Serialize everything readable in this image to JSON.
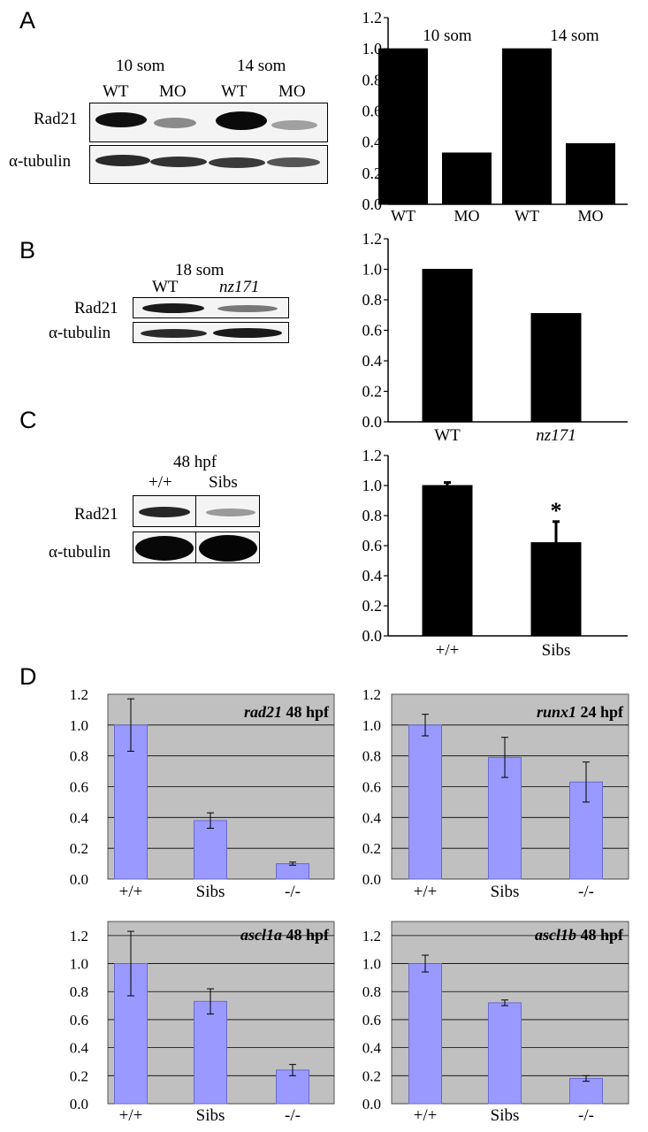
{
  "panel_letters": {
    "a": "A",
    "b": "B",
    "c": "C",
    "d": "D"
  },
  "blot_a": {
    "group_left": "10 som",
    "group_right": "14 som",
    "lanes": [
      "WT",
      "MO",
      "WT",
      "MO"
    ],
    "row1": "Rad21",
    "row2": "α-tubulin"
  },
  "blot_b": {
    "group": "18 som",
    "lanes": [
      "WT",
      "nz171"
    ],
    "row1": "Rad21",
    "row2": "α-tubulin"
  },
  "blot_c": {
    "group": "48 hpf",
    "lanes": [
      "+/+",
      "Sibs"
    ],
    "row1": "Rad21",
    "row2": "α-tubulin"
  },
  "colors": {
    "black_bar": "#000000",
    "blue_bar": "#9999ff",
    "plot_bg": "#c0c0c0"
  },
  "chart_data": [
    {
      "id": "A",
      "type": "bar",
      "categories": [
        "WT",
        "MO",
        "WT",
        "MO"
      ],
      "values": [
        1.0,
        0.33,
        1.0,
        0.39
      ],
      "group_labels": [
        "10 som",
        "14 som"
      ],
      "yticks": [
        "0.0",
        "0.2",
        "0.4",
        "0.6",
        "0.8",
        "1.0",
        "1.2"
      ],
      "ylim": [
        0,
        1.2
      ],
      "grid": false
    },
    {
      "id": "B",
      "type": "bar",
      "categories": [
        "WT",
        "nz171"
      ],
      "values": [
        1.0,
        0.71
      ],
      "yticks": [
        "0.0",
        "0.2",
        "0.4",
        "0.6",
        "0.8",
        "1.0",
        "1.2"
      ],
      "ylim": [
        0,
        1.2
      ],
      "grid": false
    },
    {
      "id": "C",
      "type": "bar",
      "categories": [
        "+/+",
        "Sibs"
      ],
      "values": [
        1.0,
        0.62
      ],
      "errors": [
        0.02,
        0.14
      ],
      "annotation": "*",
      "yticks": [
        "0.0",
        "0.2",
        "0.4",
        "0.6",
        "0.8",
        "1.0",
        "1.2"
      ],
      "ylim": [
        0,
        1.2
      ],
      "grid": false
    },
    {
      "id": "D1",
      "type": "bar",
      "gene": "rad21",
      "stage": "48 hpf",
      "categories": [
        "+/+",
        "Sibs",
        "-/-"
      ],
      "values": [
        1.0,
        0.38,
        0.1
      ],
      "errors": [
        0.17,
        0.05,
        0.01
      ],
      "yticks": [
        "0.0",
        "0.2",
        "0.4",
        "0.6",
        "0.8",
        "1.0",
        "1.2"
      ],
      "ylim": [
        0,
        1.2
      ],
      "grid": true
    },
    {
      "id": "D2",
      "type": "bar",
      "gene": "runx1",
      "stage": "24 hpf",
      "categories": [
        "+/+",
        "Sibs",
        "-/-"
      ],
      "values": [
        1.0,
        0.79,
        0.63
      ],
      "errors": [
        0.07,
        0.13,
        0.13
      ],
      "yticks": [
        "0.0",
        "0.2",
        "0.4",
        "0.6",
        "0.8",
        "1.0",
        "1.2"
      ],
      "ylim": [
        0,
        1.2
      ],
      "grid": true
    },
    {
      "id": "D3",
      "type": "bar",
      "gene": "ascl1a",
      "stage": "48 hpf",
      "categories": [
        "+/+",
        "Sibs",
        "-/-"
      ],
      "values": [
        1.0,
        0.73,
        0.24
      ],
      "errors": [
        0.23,
        0.09,
        0.04
      ],
      "yticks": [
        "0.0",
        "0.2",
        "0.4",
        "0.6",
        "0.8",
        "1.0",
        "1.2"
      ],
      "ylim": [
        0,
        1.3
      ],
      "grid": true
    },
    {
      "id": "D4",
      "type": "bar",
      "gene": "ascl1b",
      "stage": "48 hpf",
      "categories": [
        "+/+",
        "Sibs",
        "-/-"
      ],
      "values": [
        1.0,
        0.72,
        0.18
      ],
      "errors": [
        0.06,
        0.02,
        0.02
      ],
      "yticks": [
        "0.0",
        "0.2",
        "0.4",
        "0.6",
        "0.8",
        "1.0",
        "1.2"
      ],
      "ylim": [
        0,
        1.3
      ],
      "grid": true
    }
  ]
}
